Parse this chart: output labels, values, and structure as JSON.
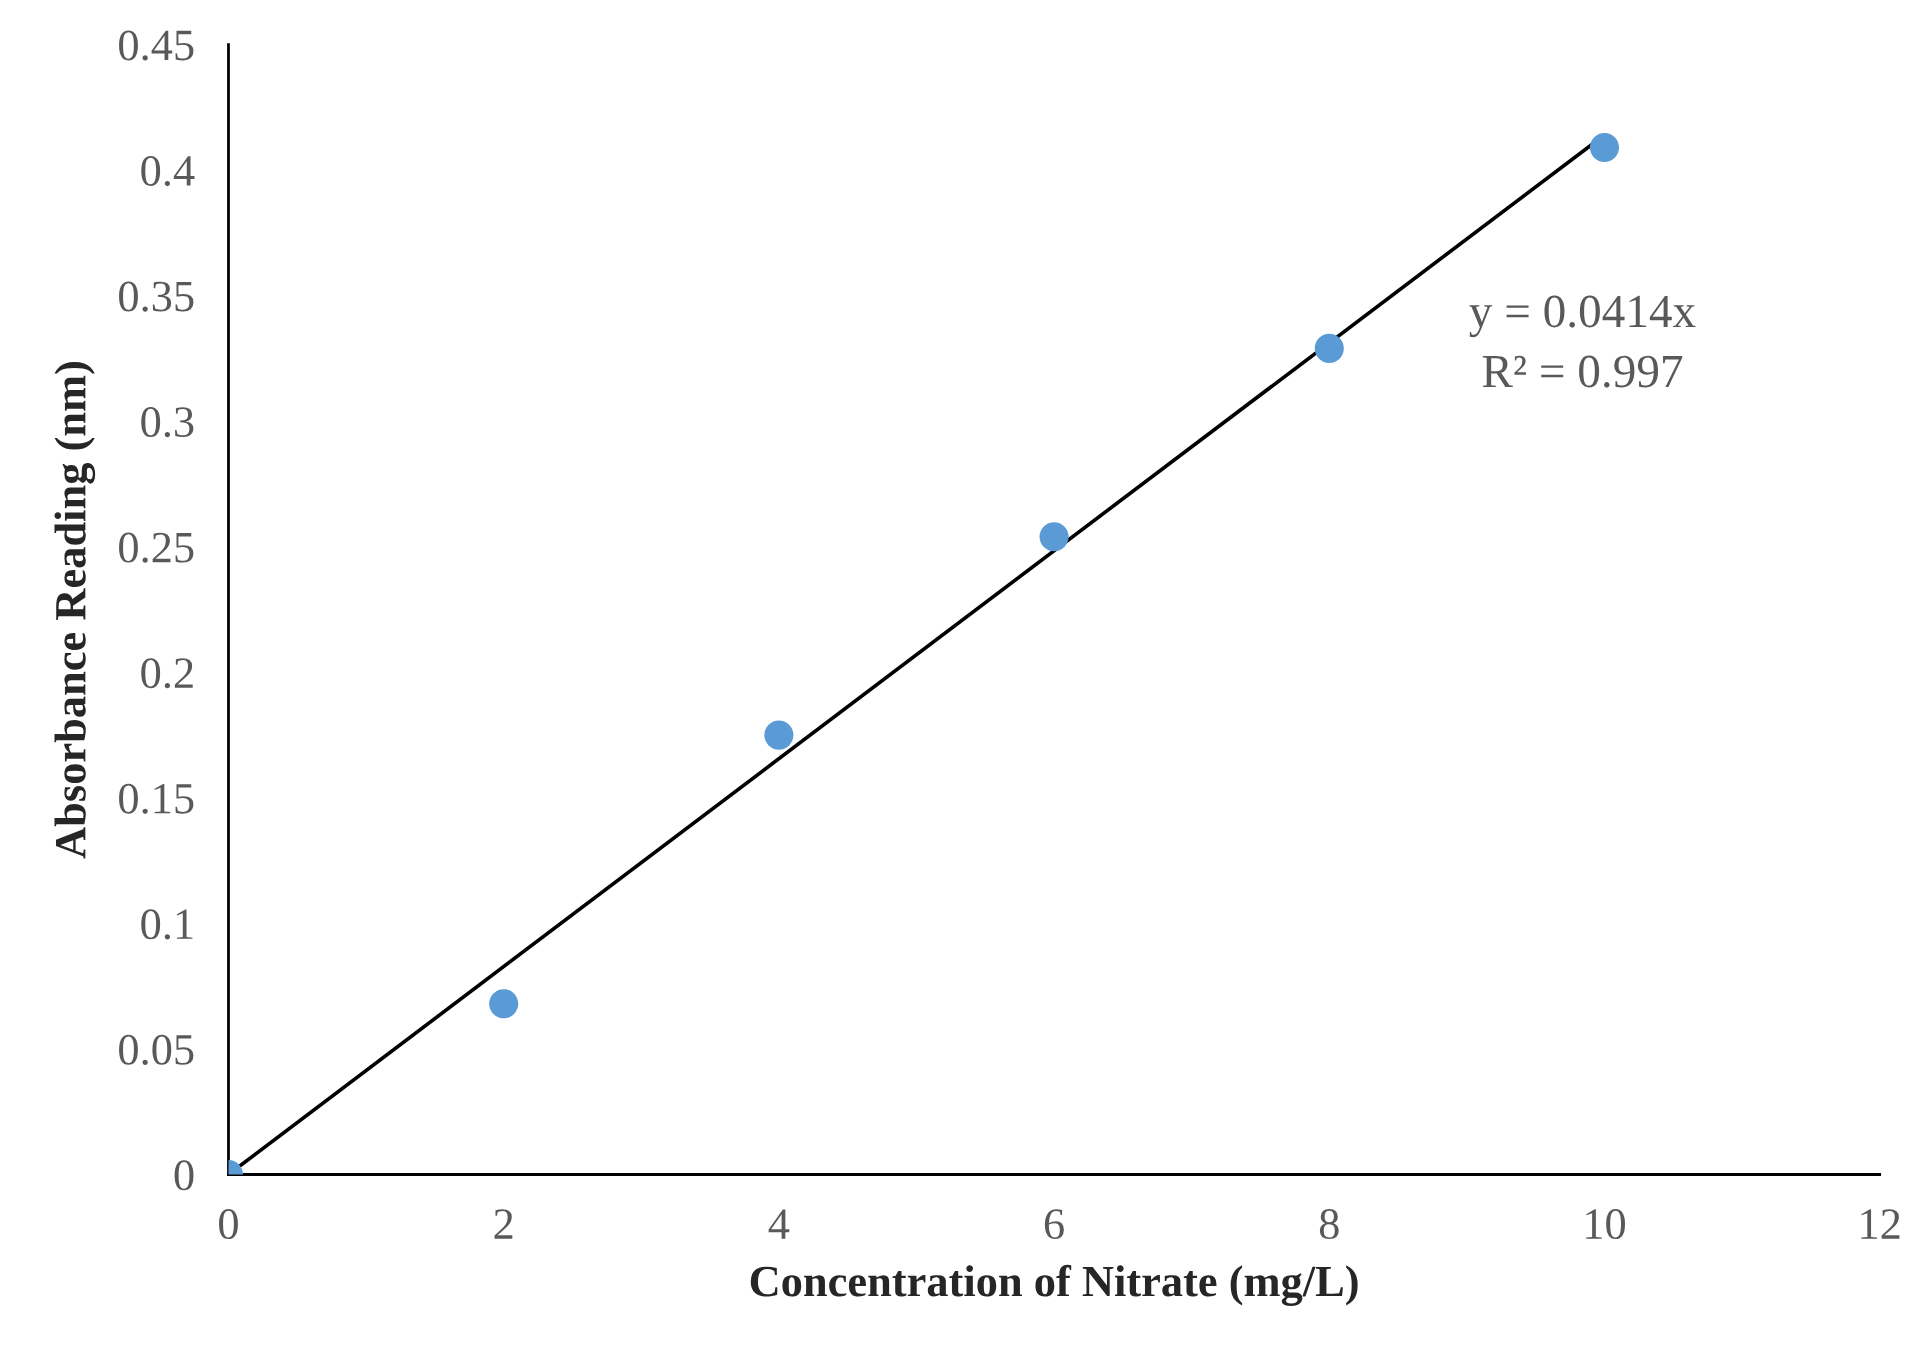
{
  "chart_data": {
    "type": "scatter",
    "xlabel": "Concentration of Nitrate (mg/L)",
    "ylabel": "Absorbance Reading (nm)",
    "xlim": [
      0,
      12
    ],
    "xticks": [
      0,
      2,
      4,
      6,
      8,
      10,
      12
    ],
    "ylim": [
      0,
      0.45
    ],
    "yticks": [
      0,
      0.05,
      0.1,
      0.15,
      0.2,
      0.25,
      0.3,
      0.35,
      0.4,
      0.45
    ],
    "grid": false,
    "legend": false,
    "series": [
      {
        "marker": "circle",
        "color": "#5b9bd5",
        "x": [
          0,
          2,
          4,
          6,
          8,
          10
        ],
        "values": [
          0,
          0.068,
          0.175,
          0.254,
          0.329,
          0.409
        ]
      },
      {
        "type": "line",
        "marker": "none",
        "color": "#000000",
        "line_style": "solid",
        "x": [
          0,
          10
        ],
        "values": [
          0,
          0.414
        ]
      }
    ],
    "annotations": [
      "y = 0.0414x",
      "R² = 0.997"
    ]
  }
}
